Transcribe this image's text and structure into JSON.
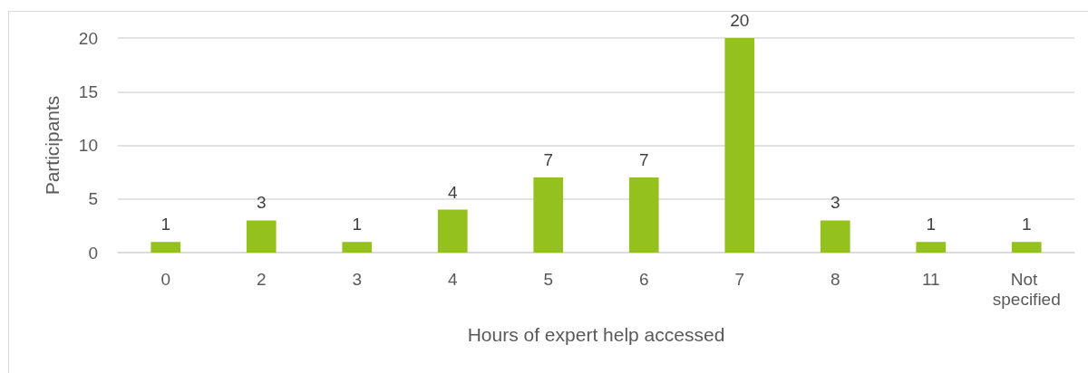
{
  "chart_data": {
    "type": "bar",
    "xlabel": "Hours of expert help accessed",
    "ylabel": "Participants",
    "categories": [
      "0",
      "2",
      "3",
      "4",
      "5",
      "6",
      "7",
      "8",
      "11",
      "Not specified"
    ],
    "values": [
      1,
      3,
      1,
      4,
      7,
      7,
      20,
      3,
      1,
      1
    ],
    "color": "#95c11f",
    "ylim": [
      0,
      20
    ],
    "yticks": [
      0,
      5,
      10,
      15,
      20
    ],
    "grid": "y",
    "data_labels": true
  }
}
